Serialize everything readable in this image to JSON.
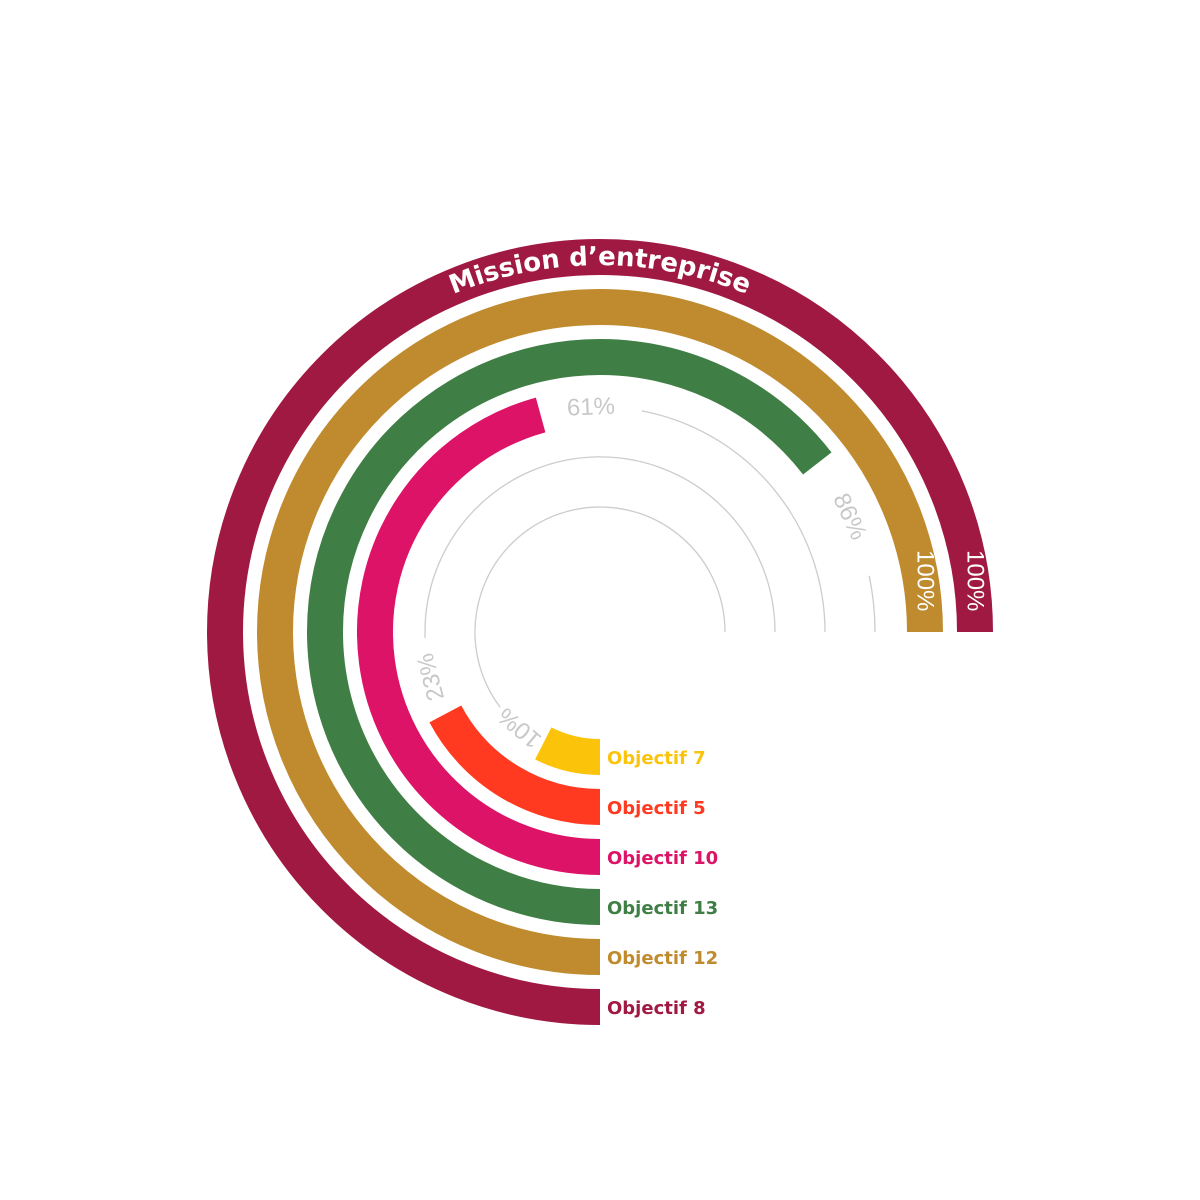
{
  "chart_data": {
    "type": "radial-bar",
    "title": "Mission d’entreprise",
    "value_max": 100,
    "unit": "%",
    "series": [
      {
        "name": "Objectif 8",
        "value": 100,
        "label": "100%",
        "color": "#a01942"
      },
      {
        "name": "Objectif 12",
        "value": 100,
        "label": "100%",
        "color": "#bf8b2e"
      },
      {
        "name": "Objectif 13",
        "value": 86,
        "label": "86%",
        "color": "#3f7e44"
      },
      {
        "name": "Objectif 10",
        "value": 61,
        "label": "61%",
        "color": "#dd1367"
      },
      {
        "name": "Objectif 5",
        "value": 23,
        "label": "23%",
        "color": "#ff3a21"
      },
      {
        "name": "Objectif 7",
        "value": 10,
        "label": "10%",
        "color": "#fcc30b"
      }
    ],
    "grid_color": "#cccccc"
  }
}
